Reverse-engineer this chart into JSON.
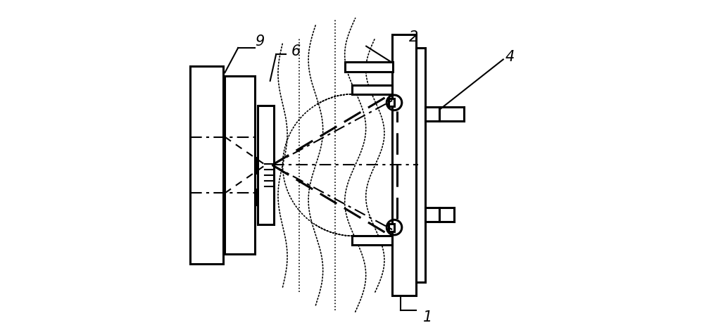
{
  "background": "#ffffff",
  "line_color": "#000000",
  "fig_width": 10.0,
  "fig_height": 4.69,
  "dpi": 100
}
